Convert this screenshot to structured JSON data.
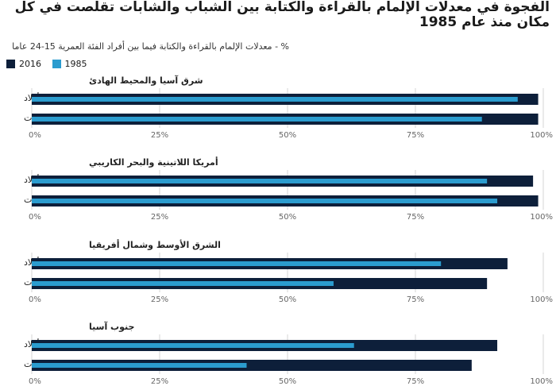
{
  "chart_data": {
    "type": "bar",
    "orientation": "horizontal",
    "title": "الفجوة في معدلات الإلمام بالقراءة والكتابة بين الشباب والشابات تقلصت في كل مكان منذ عام 1985",
    "subtitle": "% - معدلات الإلمام بالقراءة والكتابة فيما بين أفراد الفئة العمرية 15-24 عاما",
    "legend": [
      "2016",
      "1985"
    ],
    "colors": {
      "2016": "#0d1f3a",
      "1985": "#2b9ccf"
    },
    "xlim": [
      0,
      100
    ],
    "ticks": [
      "0%",
      "25%",
      "50%",
      "75%",
      "100%"
    ],
    "tick_values": [
      0,
      25,
      50,
      75,
      100
    ],
    "grid": true,
    "panels": [
      {
        "name": "شرق آسيا والمحيط الهادئ",
        "rows": [
          {
            "label": "أولاد",
            "v2016": 99,
            "v1985": 95
          },
          {
            "label": "فتيات",
            "v2016": 99,
            "v1985": 88
          }
        ]
      },
      {
        "name": "أمريكا اللاتينية والبحر الكاريبي",
        "rows": [
          {
            "label": "أولاد",
            "v2016": 98,
            "v1985": 89
          },
          {
            "label": "فتيات",
            "v2016": 99,
            "v1985": 91
          }
        ]
      },
      {
        "name": "الشرق الأوسط وشمال أفريقيا",
        "rows": [
          {
            "label": "أولاد",
            "v2016": 93,
            "v1985": 80
          },
          {
            "label": "فتيات",
            "v2016": 89,
            "v1985": 59
          }
        ]
      },
      {
        "name": "جنوب آسيا",
        "rows": [
          {
            "label": "أولاد",
            "v2016": 91,
            "v1985": 63
          },
          {
            "label": "فتيات",
            "v2016": 86,
            "v1985": 42
          }
        ]
      }
    ]
  }
}
